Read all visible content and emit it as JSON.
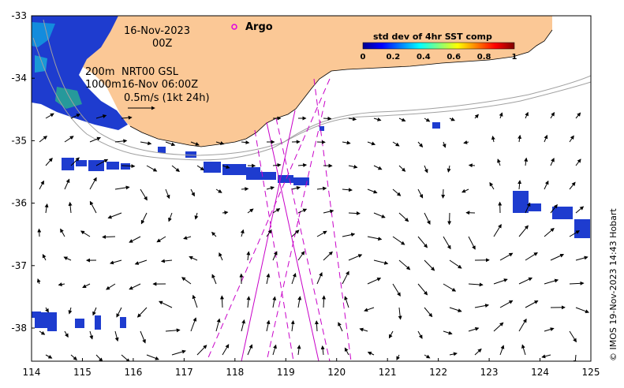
{
  "map": {
    "date_label": "16-Nov-2023",
    "time_label": "00Z",
    "argo_label": "Argo",
    "isobath_200_label": "200m",
    "isobath_1000_label": "1000m",
    "product_label": "NRT00 GSL",
    "product_time_label": "16-Nov 06:00Z",
    "scale_label": "0.5m/s (1kt 24h)",
    "colorbar_title": "std dev of 4hr SST comp",
    "colorbar_ticks": [
      "0",
      "0.2",
      "0.4",
      "0.6",
      "0.8",
      "1"
    ],
    "credit": "© IMOS 19-Nov-2023 14:43 Hobart",
    "x_ticks": [
      "114",
      "115",
      "116",
      "117",
      "118",
      "119",
      "120",
      "121",
      "122",
      "123",
      "124",
      "125"
    ],
    "y_ticks": [
      "-33",
      "-34",
      "-35",
      "-36",
      "-37",
      "-38"
    ],
    "land_color": "#fbc896",
    "track_color": "#c800c8",
    "isobath_color": "#a0a0a0"
  }
}
